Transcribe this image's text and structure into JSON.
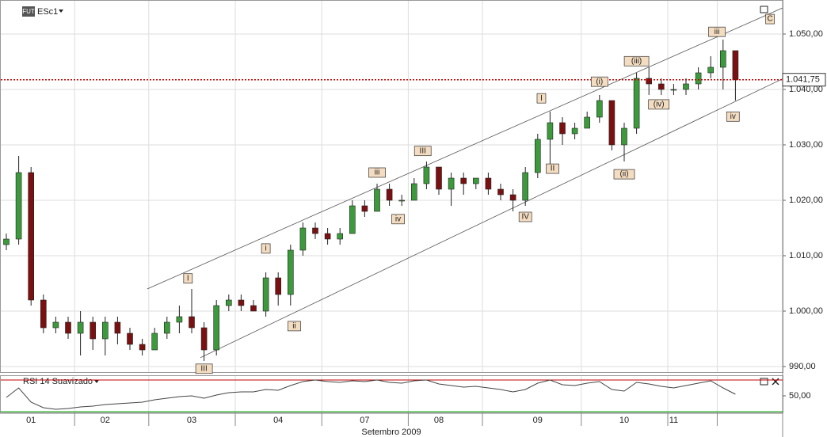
{
  "header": {
    "badge": "FUT",
    "symbol": "ESc1"
  },
  "chart_data": [
    {
      "type": "candlestick",
      "xlabel": "Setembro 2009",
      "categories": [
        null,
        null,
        "01",
        null,
        null,
        null,
        null,
        null,
        "02",
        null,
        null,
        null,
        null,
        null,
        null,
        "03",
        null,
        null,
        null,
        null,
        null,
        null,
        "04",
        null,
        null,
        null,
        null,
        null,
        null,
        "07",
        null,
        null,
        null,
        null,
        null,
        "08",
        null,
        null,
        null,
        null,
        null,
        null,
        null,
        "09",
        null,
        null,
        null,
        null,
        null,
        null,
        "10",
        null,
        null,
        null,
        "11",
        null,
        null,
        null,
        null,
        null
      ],
      "open": [
        1012,
        1013,
        1025,
        1002,
        997,
        998,
        996,
        998,
        995,
        998,
        996,
        994,
        993,
        996,
        998,
        999,
        997,
        993,
        1001,
        1002,
        1001,
        1000,
        1006,
        1003,
        1011,
        1015,
        1014,
        1013,
        1014,
        1019,
        1018,
        1022,
        1020,
        1020,
        1023,
        1026,
        1022,
        1024,
        1023,
        1024,
        1022,
        1021,
        1020,
        1025,
        1031,
        1034,
        1032,
        1033,
        1035,
        1038,
        1030,
        1033,
        1042,
        1041,
        1040,
        1040,
        1041,
        1043,
        1044,
        1047
      ],
      "high": [
        1014,
        1028,
        1026,
        1003,
        999,
        999,
        1000,
        999,
        999,
        999,
        997,
        995,
        997,
        999,
        1001,
        1004,
        998,
        1002,
        1003,
        1003,
        1002,
        1007,
        1007,
        1012,
        1016,
        1016,
        1015,
        1015,
        1020,
        1020,
        1023,
        1023,
        1021,
        1024,
        1027,
        1026,
        1025,
        1025,
        1024,
        1025,
        1023,
        1022,
        1026,
        1032,
        1036,
        1035,
        1034,
        1036,
        1039,
        1038,
        1034,
        1043,
        1044,
        1042,
        1041,
        1042,
        1044,
        1046,
        1049,
        1047
      ],
      "low": [
        1011,
        1012,
        1001,
        996,
        996,
        995,
        992,
        993,
        992,
        994,
        993,
        992,
        993,
        995,
        996,
        996,
        991,
        992,
        1000,
        1000,
        1000,
        999,
        1001,
        1001,
        1010,
        1013,
        1012,
        1012,
        1014,
        1017,
        1018,
        1019,
        1019,
        1020,
        1022,
        1021,
        1019,
        1021,
        1022,
        1021,
        1020,
        1018,
        1019,
        1024,
        1025,
        1030,
        1031,
        1033,
        1034,
        1029,
        1027,
        1032,
        1039,
        1039,
        1039,
        1039,
        1040,
        1042,
        1040,
        1038
      ],
      "close": [
        1013,
        1025,
        1002,
        997,
        998,
        996,
        998,
        995,
        998,
        996,
        994,
        993,
        996,
        998,
        999,
        997,
        993,
        1001,
        1002,
        1001,
        1000,
        1006,
        1003,
        1011,
        1015,
        1014,
        1013,
        1014,
        1019,
        1018,
        1022,
        1020,
        1020,
        1023,
        1026,
        1022,
        1024,
        1023,
        1024,
        1022,
        1021,
        1020,
        1025,
        1031,
        1034,
        1032,
        1033,
        1035,
        1038,
        1030,
        1033,
        1042,
        1041,
        1040,
        1040,
        1041,
        1043,
        1044,
        1047,
        1041.75
      ],
      "up_color": "#3c9a3c",
      "down_color": "#7a1010",
      "ylim": [
        989,
        1056.14
      ],
      "yticks": [
        {
          "value": 990,
          "label": "990,00"
        },
        {
          "value": 1000,
          "label": "1.000,00"
        },
        {
          "value": 1010,
          "label": "1.010,00"
        },
        {
          "value": 1020,
          "label": "1.020,00"
        },
        {
          "value": 1030,
          "label": "1.030,00"
        },
        {
          "value": 1040,
          "label": "1.040,00"
        },
        {
          "value": 1050,
          "label": "1.050,00"
        }
      ],
      "grid": true,
      "last_price": {
        "value": 1041.75,
        "label": "1.041,75",
        "color": "#c00000"
      },
      "trendlines": [
        {
          "x": [
            11.4,
            62.8
          ],
          "y": [
            1004,
            1054.7
          ]
        },
        {
          "x": [
            15.7,
            62.8
          ],
          "y": [
            991.6,
            1041.9
          ]
        }
      ],
      "annotations": [
        {
          "label": "I",
          "x": 14.7,
          "y": 1005.9
        },
        {
          "label": "i",
          "x": 21,
          "y": 1011.3
        },
        {
          "label": "ii",
          "x": 23.3,
          "y": 997.3
        },
        {
          "label": "III",
          "x": 16,
          "y": 989.6
        },
        {
          "label": "iii",
          "x": 30,
          "y": 1025
        },
        {
          "label": "iv",
          "x": 31.7,
          "y": 1016.6
        },
        {
          "label": "III",
          "x": 33.7,
          "y": 1028.9
        },
        {
          "label": "IV",
          "x": 42,
          "y": 1017
        },
        {
          "label": "I",
          "x": 43.3,
          "y": 1038.4
        },
        {
          "label": "II",
          "x": 44.2,
          "y": 1025.7
        },
        {
          "label": "(i)",
          "x": 48,
          "y": 1041.4
        },
        {
          "label": "(ii)",
          "x": 50,
          "y": 1024.7
        },
        {
          "label": "(iii)",
          "x": 51,
          "y": 1045.1
        },
        {
          "label": "(iv)",
          "x": 52.8,
          "y": 1037.3
        },
        {
          "label": "iii",
          "x": 57.5,
          "y": 1050.4
        },
        {
          "label": "iv",
          "x": 58.8,
          "y": 1035.1
        },
        {
          "label": "C",
          "x": 61.8,
          "y": 1052.7
        }
      ]
    },
    {
      "type": "line",
      "title": "RSI 14 Suavizado",
      "color": "#444444",
      "values": [
        48,
        60,
        42,
        35,
        33,
        34,
        36,
        37,
        39,
        40,
        41,
        42,
        45,
        47,
        49,
        50,
        47,
        51,
        54,
        55,
        55,
        58,
        57,
        63,
        68,
        70,
        68,
        67,
        69,
        68,
        70,
        67,
        66,
        69,
        70,
        65,
        63,
        61,
        62,
        60,
        58,
        55,
        58,
        66,
        70,
        64,
        63,
        66,
        68,
        58,
        56,
        67,
        65,
        62,
        60,
        63,
        66,
        69,
        60,
        52
      ],
      "ylim": [
        29,
        75
      ],
      "yticks": [
        {
          "value": 50,
          "label": "50,00"
        }
      ],
      "levels": [
        {
          "value": 70,
          "color": "#c00000"
        },
        {
          "value": 30,
          "color": "#00a000"
        }
      ]
    }
  ]
}
